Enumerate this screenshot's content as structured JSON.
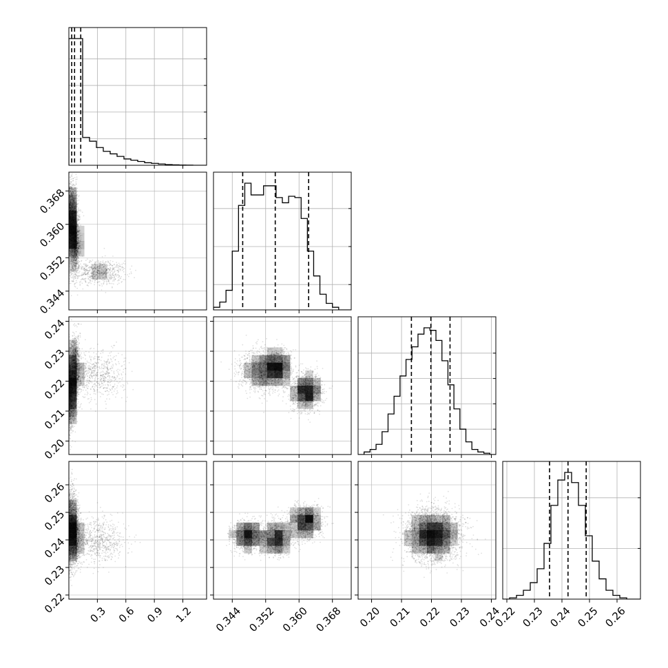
{
  "chart_data": {
    "type": "corner",
    "title": "",
    "colors": {
      "line": "#000000",
      "grid": "#b0b0b0",
      "cell": "#000000"
    },
    "grid": true,
    "params": [
      {
        "id": "p0",
        "range": [
          0.0,
          1.45
        ],
        "ticks": [
          0.3,
          0.6,
          0.9,
          1.2
        ],
        "tick_labels": [
          "0.3",
          "0.6",
          "0.9",
          "1.2"
        ],
        "quantiles": [
          0.03,
          0.06,
          0.125
        ],
        "hist_bin_edges": [
          0.0,
          0.0725,
          0.145,
          0.2175,
          0.29,
          0.3625,
          0.435,
          0.5075,
          0.58,
          0.6525,
          0.725,
          0.7975,
          0.87,
          0.9425,
          1.015,
          1.0875,
          1.16,
          1.2325,
          1.305,
          1.3775,
          1.45
        ],
        "hist_counts": [
          1.0,
          1.0,
          0.22,
          0.19,
          0.14,
          0.11,
          0.09,
          0.07,
          0.05,
          0.04,
          0.03,
          0.02,
          0.015,
          0.01,
          0.005,
          0.003,
          0.002,
          0.001,
          0.0,
          0.0
        ]
      },
      {
        "id": "p1",
        "range": [
          0.3395,
          0.3725
        ],
        "ticks": [
          0.344,
          0.352,
          0.36,
          0.368
        ],
        "tick_labels": [
          "0.344",
          "0.352",
          "0.360",
          "0.368"
        ],
        "quantiles": [
          0.3465,
          0.3543,
          0.3623
        ],
        "hist_bin_edges": [
          0.3395,
          0.341,
          0.3425,
          0.344,
          0.3455,
          0.347,
          0.3485,
          0.35,
          0.3515,
          0.353,
          0.3545,
          0.356,
          0.3575,
          0.359,
          0.3605,
          0.362,
          0.3635,
          0.365,
          0.3665,
          0.368,
          0.3695,
          0.371,
          0.3725
        ],
        "hist_counts": [
          0.02,
          0.06,
          0.15,
          0.45,
          0.8,
          0.97,
          0.88,
          0.88,
          0.95,
          0.95,
          0.86,
          0.82,
          0.87,
          0.86,
          0.7,
          0.45,
          0.26,
          0.12,
          0.05,
          0.02,
          0.0,
          0.0
        ]
      },
      {
        "id": "p2",
        "range": [
          0.1955,
          0.2415
        ],
        "ticks": [
          0.2,
          0.21,
          0.22,
          0.23,
          0.24
        ],
        "tick_labels": [
          "0.20",
          "0.21",
          "0.22",
          "0.23",
          "0.24"
        ],
        "quantiles": [
          0.2133,
          0.2198,
          0.2262
        ],
        "hist_bin_edges": [
          0.1955,
          0.1975,
          0.1995,
          0.2015,
          0.2035,
          0.2055,
          0.2075,
          0.2095,
          0.2115,
          0.2135,
          0.2155,
          0.2175,
          0.2195,
          0.2215,
          0.2235,
          0.2255,
          0.2275,
          0.2295,
          0.2315,
          0.2335,
          0.2355,
          0.2375,
          0.2395,
          0.2415
        ],
        "hist_counts": [
          0.0,
          0.02,
          0.04,
          0.08,
          0.18,
          0.32,
          0.46,
          0.62,
          0.75,
          0.85,
          0.95,
          1.0,
          0.98,
          0.9,
          0.74,
          0.55,
          0.36,
          0.2,
          0.1,
          0.04,
          0.02,
          0.01,
          0.0
        ]
      },
      {
        "id": "p3",
        "range": [
          0.2185,
          0.2685
        ],
        "ticks": [
          0.22,
          0.23,
          0.24,
          0.25,
          0.26
        ],
        "tick_labels": [
          "0.22",
          "0.23",
          "0.24",
          "0.25",
          "0.26"
        ],
        "quantiles": [
          0.2355,
          0.2422,
          0.2488
        ],
        "hist_bin_edges": [
          0.2185,
          0.221,
          0.2235,
          0.226,
          0.2285,
          0.231,
          0.2335,
          0.236,
          0.2385,
          0.241,
          0.2435,
          0.246,
          0.2485,
          0.251,
          0.2535,
          0.256,
          0.2585,
          0.261,
          0.2635,
          0.266,
          0.2685
        ],
        "hist_counts": [
          0.0,
          0.01,
          0.03,
          0.07,
          0.13,
          0.24,
          0.44,
          0.74,
          0.94,
          1.0,
          0.92,
          0.74,
          0.5,
          0.3,
          0.16,
          0.07,
          0.03,
          0.01,
          0.0,
          0.0
        ]
      }
    ],
    "hist_yticks": [
      [
        0.21,
        0.42,
        0.63,
        0.84
      ],
      [
        0.2,
        0.5,
        0.8
      ],
      [
        0.2,
        0.4,
        0.6,
        0.8
      ],
      [
        0.4,
        0.8
      ]
    ],
    "pair_modes": [
      {
        "i": 1,
        "j": 0,
        "modes": [
          {
            "x": 0.03,
            "y": 0.362,
            "sx": 0.03,
            "sy": 0.004,
            "w": 1.0
          },
          {
            "x": 0.065,
            "y": 0.3555,
            "sx": 0.025,
            "sy": 0.003,
            "w": 0.8
          },
          {
            "x": 0.3,
            "y": 0.3485,
            "sx": 0.15,
            "sy": 0.0015,
            "w": 0.5
          }
        ]
      },
      {
        "i": 2,
        "j": 0,
        "modes": [
          {
            "x": 0.02,
            "y": 0.2165,
            "sx": 0.03,
            "sy": 0.006,
            "w": 1.0
          },
          {
            "x": 0.07,
            "y": 0.225,
            "sx": 0.025,
            "sy": 0.005,
            "w": 0.8
          },
          {
            "x": 0.3,
            "y": 0.222,
            "sx": 0.15,
            "sy": 0.004,
            "w": 0.45
          }
        ]
      },
      {
        "i": 2,
        "j": 1,
        "modes": [
          {
            "x": 0.3505,
            "y": 0.2235,
            "sx": 0.0025,
            "sy": 0.0035,
            "w": 0.8
          },
          {
            "x": 0.3547,
            "y": 0.2245,
            "sx": 0.0018,
            "sy": 0.003,
            "w": 0.9
          },
          {
            "x": 0.3618,
            "y": 0.2165,
            "sx": 0.0018,
            "sy": 0.003,
            "w": 1.0
          }
        ]
      },
      {
        "i": 3,
        "j": 0,
        "modes": [
          {
            "x": 0.02,
            "y": 0.2445,
            "sx": 0.03,
            "sy": 0.007,
            "w": 1.0
          },
          {
            "x": 0.07,
            "y": 0.2415,
            "sx": 0.025,
            "sy": 0.005,
            "w": 0.8
          },
          {
            "x": 0.3,
            "y": 0.24,
            "sx": 0.15,
            "sy": 0.004,
            "w": 0.45
          }
        ]
      },
      {
        "i": 3,
        "j": 1,
        "modes": [
          {
            "x": 0.3475,
            "y": 0.2415,
            "sx": 0.0018,
            "sy": 0.0028,
            "w": 0.9
          },
          {
            "x": 0.3545,
            "y": 0.2405,
            "sx": 0.002,
            "sy": 0.003,
            "w": 1.0
          },
          {
            "x": 0.3615,
            "y": 0.2465,
            "sx": 0.0018,
            "sy": 0.003,
            "w": 1.0
          }
        ]
      },
      {
        "i": 3,
        "j": 2,
        "modes": [
          {
            "x": 0.2205,
            "y": 0.2418,
            "sx": 0.0045,
            "sy": 0.0045,
            "w": 1.0
          }
        ]
      }
    ]
  }
}
